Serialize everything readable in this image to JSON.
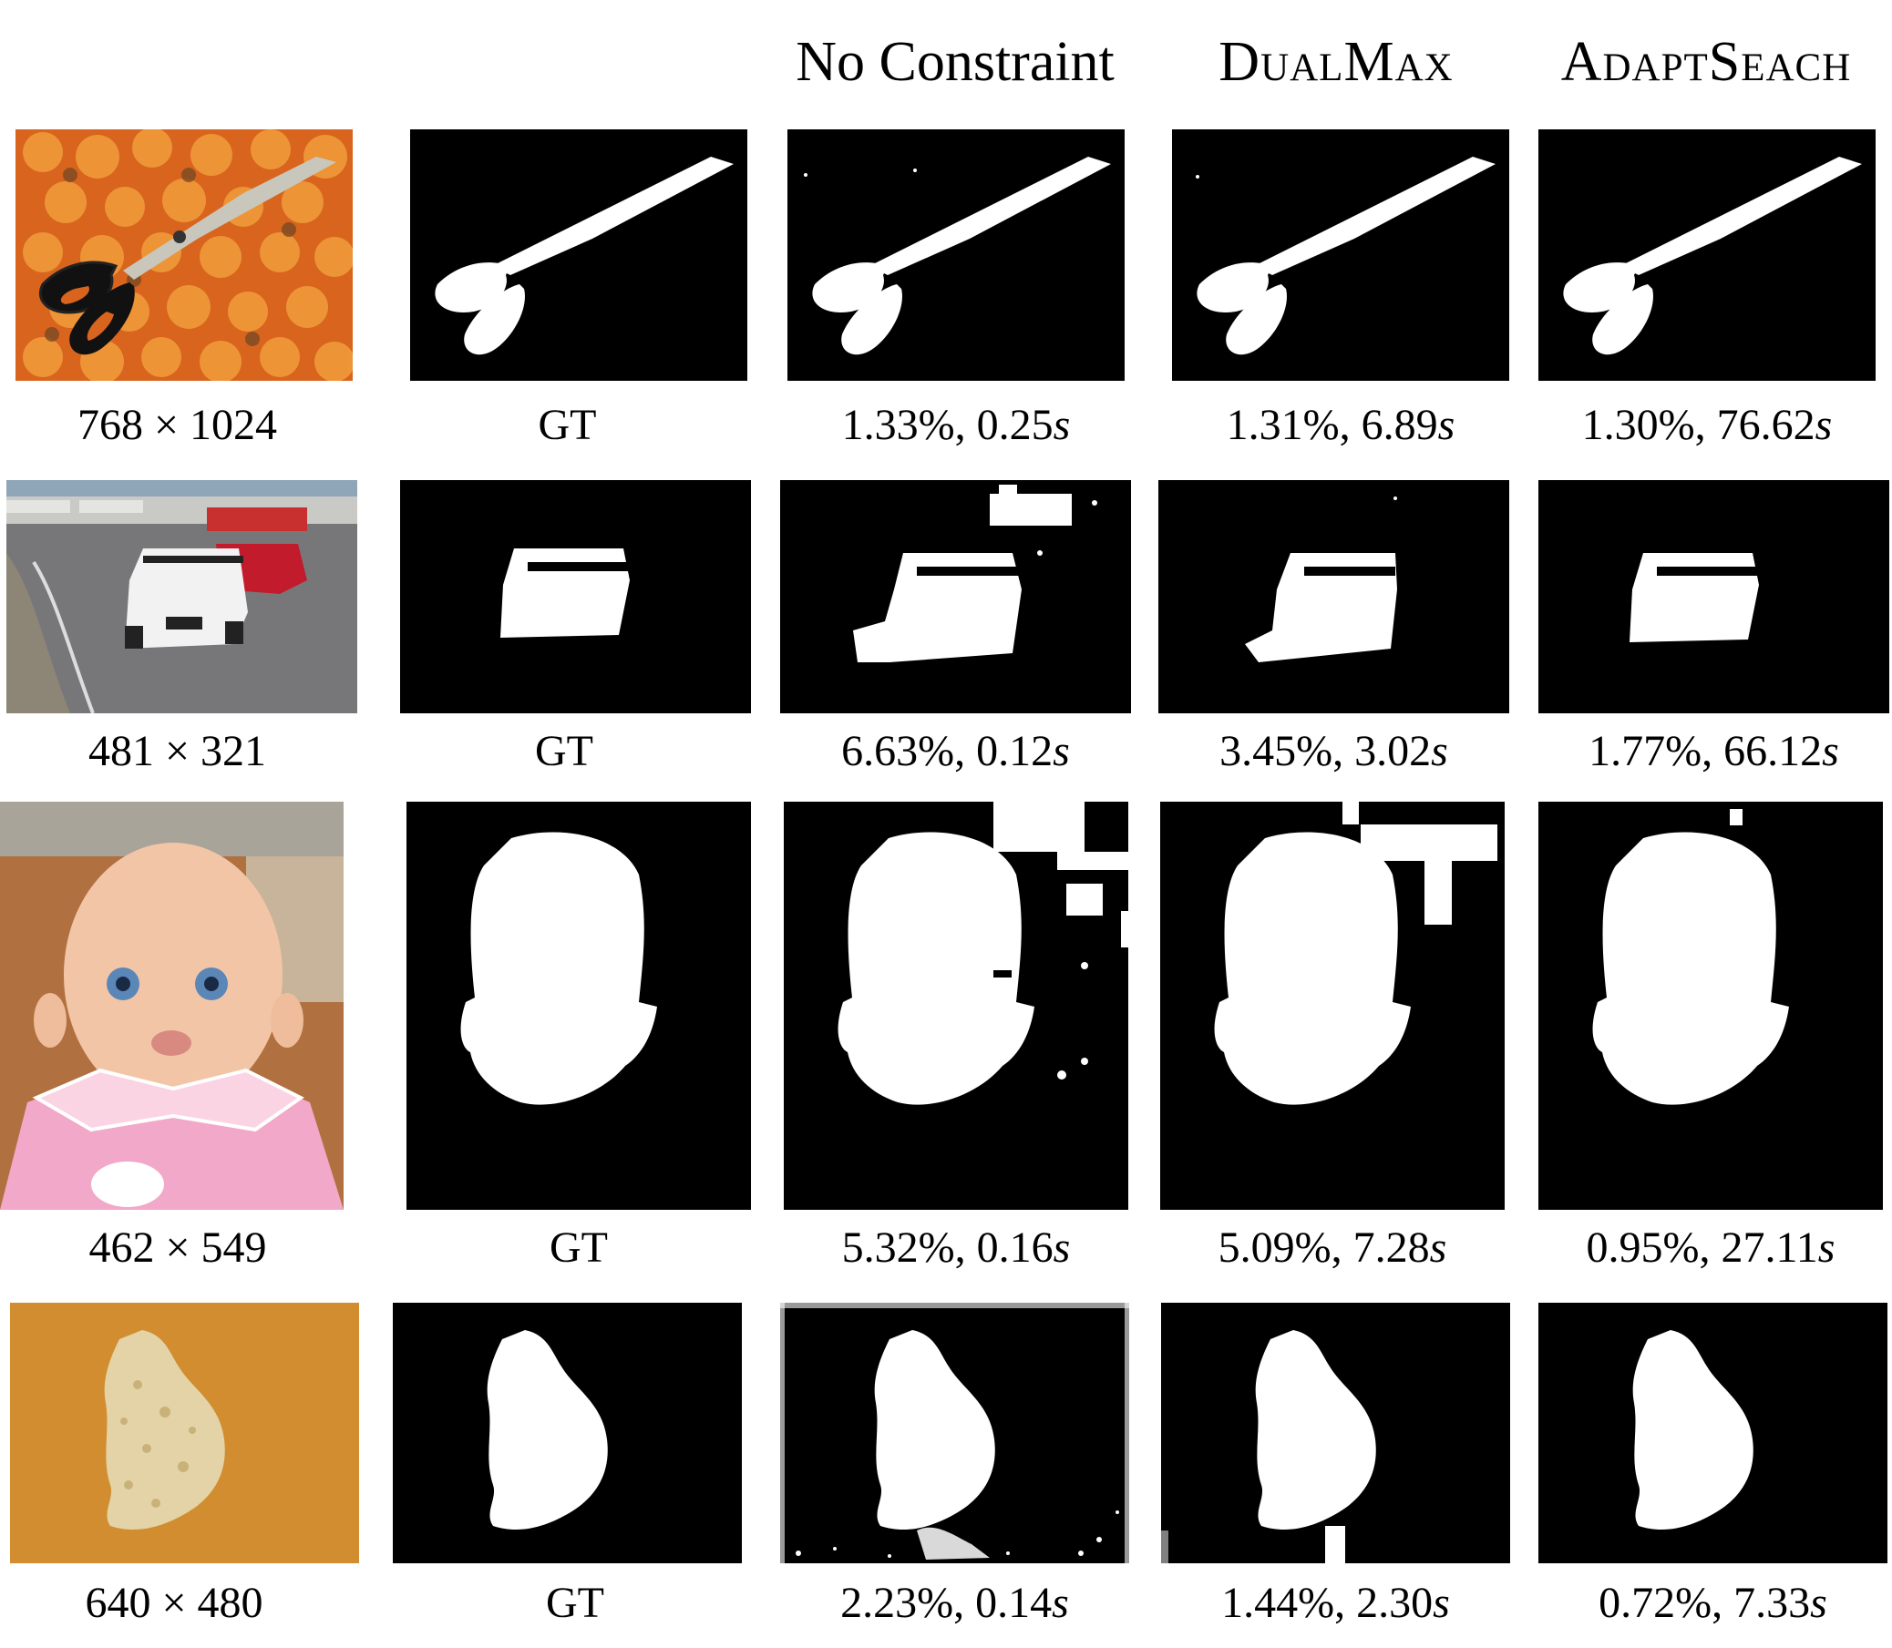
{
  "columns": {
    "input": "",
    "ground_truth": "",
    "no_constraint": "No Constraint",
    "dualmax": "DualMax",
    "adaptsearch": "AdaptSeach"
  },
  "rows": [
    {
      "photo_subject": "scissors on orange fabric",
      "mask_shape": "scissors-mask",
      "size_label": "768 × 1024",
      "gt_label": "GT",
      "no_constraint": {
        "error": "1.33%",
        "time": "0.25",
        "unit": "s"
      },
      "dualmax": {
        "error": "1.31%",
        "time": "6.89",
        "unit": "s"
      },
      "adaptsearch": {
        "error": "1.30%",
        "time": "76.62",
        "unit": "s"
      }
    },
    {
      "photo_subject": "race car on track",
      "mask_shape": "car-mask",
      "size_label": "481 × 321",
      "gt_label": "GT",
      "no_constraint": {
        "error": "6.63%",
        "time": "0.12",
        "unit": "s"
      },
      "dualmax": {
        "error": "3.45%",
        "time": "3.02",
        "unit": "s"
      },
      "adaptsearch": {
        "error": "1.77%",
        "time": "66.12",
        "unit": "s"
      }
    },
    {
      "photo_subject": "baby doll head",
      "mask_shape": "head-mask",
      "size_label": "462 × 549",
      "gt_label": "GT",
      "no_constraint": {
        "error": "5.32%",
        "time": "0.16",
        "unit": "s"
      },
      "dualmax": {
        "error": "5.09%",
        "time": "7.28",
        "unit": "s"
      },
      "adaptsearch": {
        "error": "0.95%",
        "time": "27.11",
        "unit": "s"
      }
    },
    {
      "photo_subject": "sponge stone on wooden table",
      "mask_shape": "stone-mask",
      "size_label": "640 × 480",
      "gt_label": "GT",
      "no_constraint": {
        "error": "2.23%",
        "time": "0.14",
        "unit": "s"
      },
      "dualmax": {
        "error": "1.44%",
        "time": "2.30",
        "unit": "s"
      },
      "adaptsearch": {
        "error": "0.72%",
        "time": "7.33",
        "unit": "s"
      }
    }
  ],
  "colors": {
    "mask_background": "#000000",
    "mask_foreground": "#ffffff",
    "orange_fabric": "#e0762a",
    "wood": "#c98a2c",
    "doll_skin": "#f1c8aa",
    "doll_pink": "#f2a9c8"
  }
}
